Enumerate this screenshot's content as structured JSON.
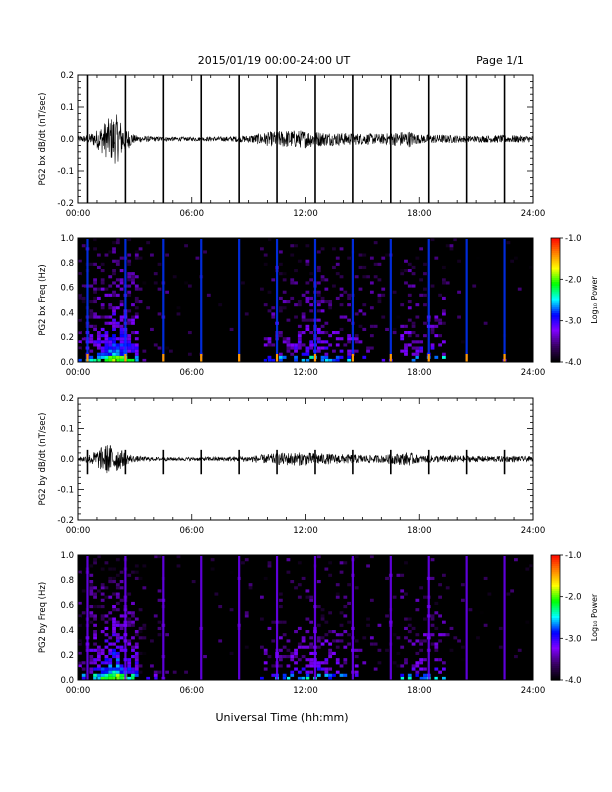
{
  "header": {
    "title": "2015/01/19  00:00-24:00 UT",
    "page": "Page 1/1"
  },
  "x_axis": {
    "ticks": [
      "00:00",
      "06:00",
      "12:00",
      "18:00",
      "24:00"
    ],
    "tick_hours": [
      0,
      6,
      12,
      18,
      24
    ],
    "label": "Universal Time (hh:mm)"
  },
  "colors": {
    "background": "#ffffff",
    "spectrogram_bg": "#000000",
    "line": "#000000",
    "colormap": [
      "#000000",
      "#3a0066",
      "#7f00ff",
      "#0000ff",
      "#00ffff",
      "#00ff00",
      "#ffff00",
      "#ff8000",
      "#ff0000"
    ]
  },
  "chart_data": [
    {
      "type": "line",
      "panel": "bx-timeseries",
      "ylabel": "PG2 bx dB/dt (nT/sec)",
      "ylim": [
        -0.2,
        0.2
      ],
      "yticks": [
        -0.2,
        -0.1,
        0.0,
        0.1,
        0.2
      ],
      "ytick_labels": [
        "-0.2",
        "-0.1",
        "0.0",
        "0.1",
        "0.2"
      ],
      "xlim": [
        0,
        24
      ],
      "spike_hours": [
        0.5,
        2.5,
        4.5,
        6.5,
        8.5,
        10.5,
        12.5,
        14.5,
        16.5,
        18.5,
        20.5,
        22.5
      ],
      "spike_value": [
        -0.2,
        0.2
      ],
      "noise_envelope": {
        "hours": [
          0,
          0.5,
          1.0,
          1.5,
          2.0,
          2.5,
          3.0,
          4.0,
          6.0,
          8.0,
          9.0,
          10.0,
          11.0,
          12.0,
          13.0,
          14.0,
          15.0,
          16.0,
          17.0,
          17.5,
          18.0,
          19.0,
          20.0,
          21.0,
          22.0,
          23.0,
          24.0
        ],
        "amplitude": [
          0.01,
          0.012,
          0.03,
          0.06,
          0.08,
          0.04,
          0.012,
          0.008,
          0.006,
          0.008,
          0.012,
          0.022,
          0.028,
          0.028,
          0.022,
          0.02,
          0.018,
          0.016,
          0.024,
          0.026,
          0.014,
          0.014,
          0.012,
          0.01,
          0.012,
          0.012,
          0.01
        ]
      }
    },
    {
      "type": "heatmap",
      "panel": "bx-spectrogram",
      "ylabel": "PG2 bx Freq (Hz)",
      "ylim": [
        0.0,
        1.0
      ],
      "yticks": [
        0.0,
        0.2,
        0.4,
        0.6,
        0.8,
        1.0
      ],
      "ytick_labels": [
        "0.0",
        "0.2",
        "0.4",
        "0.6",
        "0.8",
        "1.0"
      ],
      "xlim": [
        0,
        24
      ],
      "colorbar": {
        "label": "Log₁₀ Power",
        "range": [
          -4.0,
          -1.0
        ],
        "ticks": [
          -1.0,
          -2.0,
          -3.0,
          -4.0
        ],
        "tick_labels": [
          "-1.0",
          "-2.0",
          "-3.0",
          "-4.0"
        ]
      },
      "stripe_hours": [
        0.5,
        2.5,
        4.5,
        6.5,
        8.5,
        10.5,
        12.5,
        14.5,
        16.5,
        18.5,
        20.5,
        22.5
      ],
      "stripe_log_power": -2.8
    },
    {
      "type": "line",
      "panel": "by-timeseries",
      "ylabel": "PG2 by dB/dt (nT/sec)",
      "ylim": [
        -0.2,
        0.2
      ],
      "yticks": [
        -0.2,
        -0.1,
        0.0,
        0.1,
        0.2
      ],
      "ytick_labels": [
        "-0.2",
        "-0.1",
        "0.0",
        "0.1",
        "0.2"
      ],
      "xlim": [
        0,
        24
      ],
      "spike_hours": [
        0.5,
        2.5,
        4.5,
        6.5,
        8.5,
        10.5,
        12.5,
        14.5,
        16.5,
        18.5,
        20.5,
        22.5
      ],
      "spike_value": [
        -0.05,
        0.03
      ],
      "noise_envelope": {
        "hours": [
          0,
          0.5,
          1.0,
          1.5,
          2.0,
          2.5,
          3.0,
          4.0,
          6.0,
          8.0,
          9.0,
          10.0,
          11.0,
          12.0,
          13.0,
          14.0,
          15.0,
          16.0,
          17.0,
          17.5,
          18.0,
          19.0,
          20.0,
          21.0,
          22.0,
          23.0,
          24.0
        ],
        "amplitude": [
          0.008,
          0.012,
          0.03,
          0.05,
          0.045,
          0.02,
          0.01,
          0.006,
          0.006,
          0.008,
          0.01,
          0.016,
          0.022,
          0.022,
          0.018,
          0.016,
          0.014,
          0.012,
          0.02,
          0.022,
          0.012,
          0.012,
          0.012,
          0.01,
          0.01,
          0.01,
          0.008
        ]
      }
    },
    {
      "type": "heatmap",
      "panel": "by-spectrogram",
      "ylabel": "PG2 by Freq (Hz)",
      "ylim": [
        0.0,
        1.0
      ],
      "yticks": [
        0.0,
        0.2,
        0.4,
        0.6,
        0.8,
        1.0
      ],
      "ytick_labels": [
        "0.0",
        "0.2",
        "0.4",
        "0.6",
        "0.8",
        "1.0"
      ],
      "xlim": [
        0,
        24
      ],
      "colorbar": {
        "label": "Log₁₀ Power",
        "range": [
          -4.0,
          -1.0
        ],
        "ticks": [
          -1.0,
          -2.0,
          -3.0,
          -4.0
        ],
        "tick_labels": [
          "-1.0",
          "-2.0",
          "-3.0",
          "-4.0"
        ]
      },
      "stripe_hours": [
        0.5,
        2.5,
        4.5,
        6.5,
        8.5,
        10.5,
        12.5,
        14.5,
        16.5,
        18.5,
        20.5,
        22.5
      ],
      "stripe_log_power": -3.2
    }
  ]
}
